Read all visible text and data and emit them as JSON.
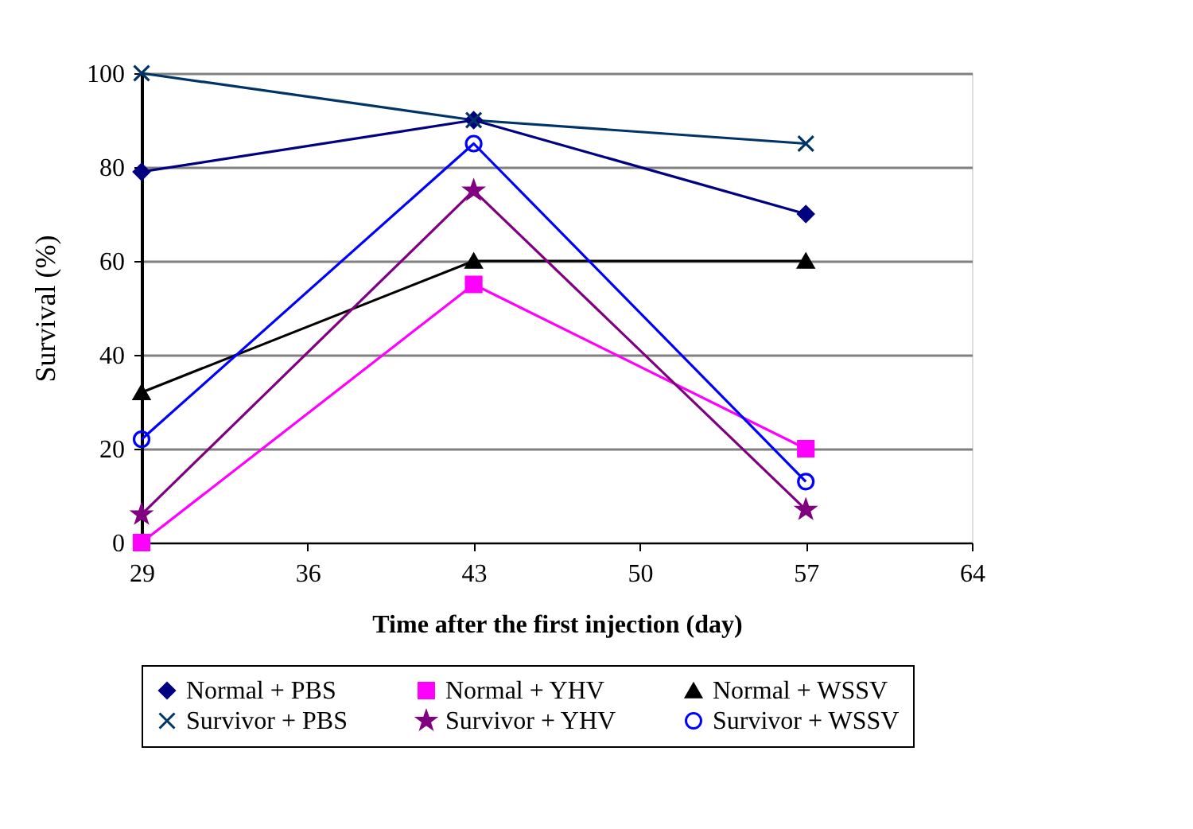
{
  "chart_data": {
    "type": "line",
    "xlabel": "Time after the first injection (day)",
    "ylabel": "Survival (%)",
    "x": [
      29,
      43,
      57
    ],
    "xlim": [
      29,
      64
    ],
    "xticks": [
      29,
      36,
      43,
      50,
      57,
      64
    ],
    "ylim": [
      0,
      100
    ],
    "yticks": [
      0,
      20,
      40,
      60,
      80,
      100
    ],
    "grid": "y",
    "legend": "bottom",
    "line_style": "solid",
    "series": [
      {
        "name": "Normal + PBS",
        "color": "#000080",
        "marker": "diamond",
        "values": [
          79,
          90,
          70
        ]
      },
      {
        "name": "Normal + YHV",
        "color": "#ff00ff",
        "marker": "square",
        "values": [
          0,
          55,
          20
        ]
      },
      {
        "name": "Normal + WSSV",
        "color": "#000000",
        "marker": "triangle",
        "values": [
          32,
          60,
          60
        ]
      },
      {
        "name": "Survivor + PBS",
        "color": "#003366",
        "marker": "cross",
        "values": [
          100,
          90,
          85
        ]
      },
      {
        "name": "Survivor + YHV",
        "color": "#800080",
        "marker": "star",
        "values": [
          6,
          75,
          7
        ]
      },
      {
        "name": "Survivor + WSSV",
        "color": "#0000ff",
        "marker": "circle",
        "values": [
          22,
          85,
          13
        ]
      }
    ]
  }
}
